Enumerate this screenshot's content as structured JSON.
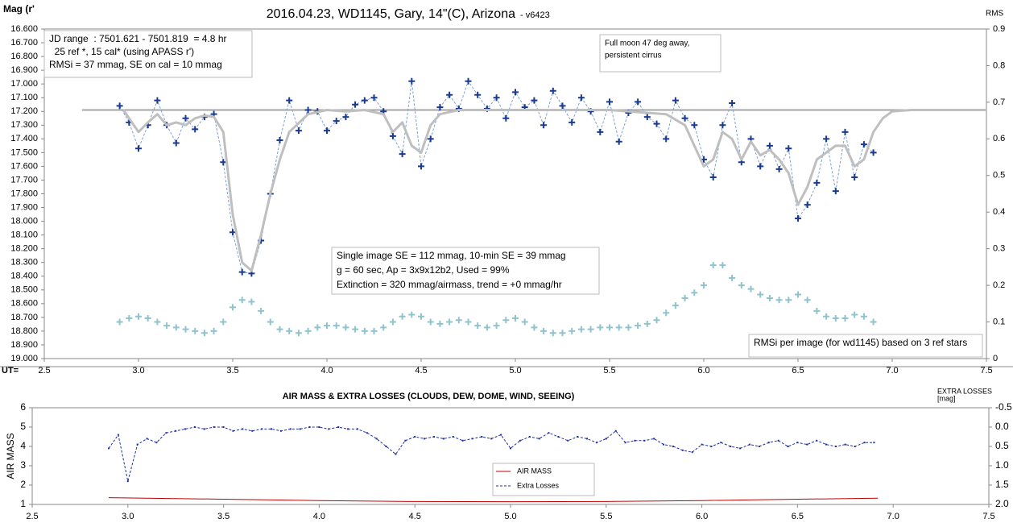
{
  "chart_data": [
    {
      "type": "line",
      "title": "2016.04.23,  WD1145, Gary, 14\"(C), Arizona",
      "subtitle": "- v6423",
      "ylabel": "Mag (r'",
      "y2label": "RMS",
      "xlabel": "UT=",
      "xlim": [
        2.5,
        7.5
      ],
      "xticks": [
        2.5,
        {
          "value": 3,
          "label": "3.0"
        },
        3.5,
        {
          "value": 4,
          "label": "4.0"
        },
        4.5,
        {
          "value": 5,
          "label": "5.0"
        },
        5.5,
        {
          "value": 6,
          "label": "6.0"
        },
        6.5,
        {
          "value": 7,
          "label": "7.0"
        },
        7.5
      ],
      "ylim": [
        19.0,
        16.6
      ],
      "yticks": [
        {
          "value": 16.6,
          "label": "16.600"
        },
        {
          "value": 16.7,
          "label": "16.700"
        },
        {
          "value": 16.8,
          "label": "16.800"
        },
        {
          "value": 16.9,
          "label": "16.900"
        },
        {
          "value": 17.0,
          "label": "17.000"
        },
        {
          "value": 17.1,
          "label": "17.100"
        },
        {
          "value": 17.2,
          "label": "17.200"
        },
        {
          "value": 17.3,
          "label": "17.300"
        },
        {
          "value": 17.4,
          "label": "17.400"
        },
        {
          "value": 17.5,
          "label": "17.500"
        },
        {
          "value": 17.6,
          "label": "17.600"
        },
        {
          "value": 17.7,
          "label": "17.700"
        },
        {
          "value": 17.8,
          "label": "17.800"
        },
        {
          "value": 17.9,
          "label": "17.900"
        },
        {
          "value": 18.0,
          "label": "18.000"
        },
        {
          "value": 18.1,
          "label": "18.100"
        },
        {
          "value": 18.2,
          "label": "18.200"
        },
        {
          "value": 18.3,
          "label": "18.300"
        },
        {
          "value": 18.4,
          "label": "18.400"
        },
        {
          "value": 18.5,
          "label": "18.500"
        },
        {
          "value": 18.6,
          "label": "18.600"
        },
        {
          "value": 18.7,
          "label": "18.700"
        },
        {
          "value": 18.8,
          "label": "18.800"
        },
        {
          "value": 18.9,
          "label": "18.900"
        },
        {
          "value": 19.0,
          "label": "19.000"
        }
      ],
      "y2lim": [
        0,
        0.9
      ],
      "y2ticks": [
        0,
        0.1,
        0.2,
        0.3,
        0.4,
        0.5,
        0.6,
        0.7,
        0.8,
        0.9
      ],
      "series": [
        {
          "color": "#a6a6a6",
          "line": "solid",
          "width": 2,
          "marker": "none",
          "x": [
            2.7,
            7.5
          ],
          "values": [
            17.19,
            17.19
          ]
        },
        {
          "color": "#1a3a8f",
          "line": "dashed",
          "width": 1,
          "marker": "plus",
          "linecolor": "#7d9fd8",
          "x": [
            2.9,
            2.95,
            3.0,
            3.05,
            3.1,
            3.15,
            3.2,
            3.25,
            3.3,
            3.35,
            3.4,
            3.45,
            3.5,
            3.55,
            3.6,
            3.65,
            3.7,
            3.75,
            3.8,
            3.85,
            3.9,
            3.95,
            4.0,
            4.05,
            4.1,
            4.15,
            4.2,
            4.25,
            4.3,
            4.35,
            4.4,
            4.45,
            4.5,
            4.55,
            4.6,
            4.65,
            4.7,
            4.75,
            4.8,
            4.85,
            4.9,
            4.95,
            5.0,
            5.05,
            5.1,
            5.15,
            5.2,
            5.25,
            5.3,
            5.35,
            5.4,
            5.45,
            5.5,
            5.55,
            5.6,
            5.65,
            5.7,
            5.75,
            5.8,
            5.85,
            5.9,
            5.95,
            6.0,
            6.05,
            6.1,
            6.15,
            6.2,
            6.25,
            6.3,
            6.35,
            6.4,
            6.45,
            6.5,
            6.55,
            6.6,
            6.65,
            6.7,
            6.75,
            6.8,
            6.85,
            6.9
          ],
          "values": [
            17.16,
            17.28,
            17.47,
            17.3,
            17.12,
            17.3,
            17.43,
            17.25,
            17.33,
            17.24,
            17.22,
            17.57,
            18.08,
            18.37,
            18.38,
            18.14,
            17.8,
            17.41,
            17.12,
            17.34,
            17.19,
            17.2,
            17.34,
            17.27,
            17.24,
            17.15,
            17.12,
            17.1,
            17.2,
            17.38,
            17.51,
            16.98,
            17.6,
            17.4,
            17.17,
            17.08,
            17.18,
            16.98,
            17.08,
            17.18,
            17.1,
            17.25,
            17.06,
            17.17,
            17.12,
            17.3,
            17.05,
            17.16,
            17.28,
            17.1,
            17.2,
            17.35,
            17.13,
            17.42,
            17.21,
            17.13,
            17.24,
            17.29,
            17.4,
            17.12,
            17.25,
            17.3,
            17.55,
            17.68,
            17.3,
            17.14,
            17.57,
            17.4,
            17.6,
            17.45,
            17.62,
            17.47,
            17.98,
            17.88,
            17.72,
            17.4,
            17.78,
            17.35,
            17.68,
            17.44,
            17.5
          ]
        },
        {
          "color": "#bfbfbf",
          "line": "solid",
          "width": 3,
          "marker": "none",
          "x": [
            2.92,
            3.0,
            3.05,
            3.1,
            3.15,
            3.2,
            3.25,
            3.3,
            3.35,
            3.4,
            3.45,
            3.5,
            3.55,
            3.6,
            3.65,
            3.7,
            3.75,
            3.8,
            3.9,
            4.0,
            4.1,
            4.2,
            4.3,
            4.35,
            4.4,
            4.45,
            4.5,
            4.55,
            4.6,
            4.7,
            4.8,
            5.0,
            5.5,
            5.8,
            5.9,
            5.95,
            6.0,
            6.05,
            6.1,
            6.15,
            6.2,
            6.25,
            6.3,
            6.35,
            6.4,
            6.45,
            6.5,
            6.55,
            6.6,
            6.65,
            6.7,
            6.75,
            6.8,
            6.85,
            6.9,
            6.95,
            7.0,
            7.1,
            7.5
          ],
          "values": [
            17.19,
            17.35,
            17.28,
            17.22,
            17.3,
            17.28,
            17.3,
            17.25,
            17.23,
            17.24,
            17.35,
            17.95,
            18.3,
            18.36,
            18.1,
            17.8,
            17.55,
            17.35,
            17.22,
            17.19,
            17.2,
            17.19,
            17.22,
            17.35,
            17.28,
            17.45,
            17.5,
            17.3,
            17.22,
            17.19,
            17.19,
            17.19,
            17.19,
            17.22,
            17.3,
            17.45,
            17.6,
            17.55,
            17.35,
            17.4,
            17.55,
            17.42,
            17.52,
            17.48,
            17.55,
            17.65,
            17.88,
            17.75,
            17.55,
            17.5,
            17.45,
            17.45,
            17.6,
            17.55,
            17.35,
            17.25,
            17.2,
            17.19,
            17.19
          ]
        },
        {
          "color": "#8fc4cc",
          "line": "none",
          "width": 1,
          "marker": "plus",
          "axis": "y2",
          "x": [
            2.9,
            2.95,
            3.0,
            3.05,
            3.1,
            3.15,
            3.2,
            3.25,
            3.3,
            3.35,
            3.4,
            3.45,
            3.5,
            3.55,
            3.6,
            3.65,
            3.7,
            3.75,
            3.8,
            3.85,
            3.9,
            3.95,
            4.0,
            4.05,
            4.1,
            4.15,
            4.2,
            4.25,
            4.3,
            4.35,
            4.4,
            4.45,
            4.5,
            4.55,
            4.6,
            4.65,
            4.7,
            4.75,
            4.8,
            4.85,
            4.9,
            4.95,
            5.0,
            5.05,
            5.1,
            5.15,
            5.2,
            5.25,
            5.3,
            5.35,
            5.4,
            5.45,
            5.5,
            5.55,
            5.6,
            5.65,
            5.7,
            5.75,
            5.8,
            5.85,
            5.9,
            5.95,
            6.0,
            6.05,
            6.1,
            6.15,
            6.2,
            6.25,
            6.3,
            6.35,
            6.4,
            6.45,
            6.5,
            6.55,
            6.6,
            6.65,
            6.7,
            6.75,
            6.8,
            6.85,
            6.9
          ],
          "values": [
            0.1,
            0.11,
            0.115,
            0.11,
            0.1,
            0.09,
            0.085,
            0.08,
            0.075,
            0.07,
            0.075,
            0.1,
            0.14,
            0.16,
            0.155,
            0.13,
            0.1,
            0.08,
            0.075,
            0.07,
            0.075,
            0.085,
            0.09,
            0.09,
            0.085,
            0.08,
            0.075,
            0.075,
            0.085,
            0.1,
            0.115,
            0.12,
            0.115,
            0.1,
            0.095,
            0.1,
            0.105,
            0.1,
            0.09,
            0.085,
            0.09,
            0.105,
            0.11,
            0.1,
            0.085,
            0.075,
            0.07,
            0.07,
            0.075,
            0.08,
            0.08,
            0.085,
            0.085,
            0.085,
            0.085,
            0.09,
            0.095,
            0.105,
            0.125,
            0.145,
            0.165,
            0.18,
            0.2,
            0.255,
            0.255,
            0.22,
            0.2,
            0.19,
            0.175,
            0.165,
            0.16,
            0.16,
            0.175,
            0.16,
            0.13,
            0.115,
            0.11,
            0.11,
            0.12,
            0.115,
            0.1
          ]
        }
      ],
      "annotations": [
        {
          "lines": [
            "JD range  : 7501.621 - 7501.819  = 4.8 hr",
            "  25 ref *, 15 cal* (using APASS r')",
            "RMSi = 37 mmag, SE on cal = 10 mmag"
          ]
        },
        {
          "lines": [
            "Full moon 47 deg away,",
            "persistent cirrus"
          ]
        },
        {
          "lines": [
            "Single image SE = 112 mmag, 10-min SE = 39 mmag",
            "g = 60 sec, Ap = 3x9x12b2, Used = 99%",
            "Extinction = 320 mmag/airmass, trend = +0 mmag/hr"
          ]
        },
        {
          "lines": [
            "RMSi per image (for wd1145) based on 3 ref stars"
          ]
        }
      ]
    },
    {
      "type": "line",
      "title": "AIR MASS & EXTRA LOSSES (CLOUDS, DEW, DOME, WIND, SEEING)",
      "ylabel": "AIR MASS",
      "y2label": [
        "EXTRA LOSSES",
        "[mag]"
      ],
      "xlim": [
        2.5,
        7.5
      ],
      "xticks": [
        2.5,
        {
          "value": 3,
          "label": "3.0"
        },
        3.5,
        {
          "value": 4,
          "label": "4.0"
        },
        4.5,
        {
          "value": 5,
          "label": "5.0"
        },
        5.5,
        {
          "value": 6,
          "label": "6.0"
        },
        6.5,
        {
          "value": 7,
          "label": "7.0"
        },
        7.5
      ],
      "ylim": [
        1,
        6
      ],
      "yticks": [
        1,
        2,
        3,
        4,
        5,
        6
      ],
      "y2lim": [
        2.0,
        -0.5
      ],
      "y2ticks": [
        {
          "value": 2,
          "label": "2.0"
        },
        1.5,
        {
          "value": 1,
          "label": "1.0"
        },
        0.5,
        {
          "value": 0,
          "label": "0.0"
        },
        -0.5
      ],
      "series": [
        {
          "name": "AIR MASS",
          "color": "#c00000",
          "line": "solid",
          "width": 1,
          "marker": "none",
          "x": [
            2.9,
            3.5,
            4.0,
            4.5,
            5.0,
            5.5,
            6.0,
            6.5,
            6.92
          ],
          "values": [
            1.35,
            1.27,
            1.2,
            1.15,
            1.14,
            1.15,
            1.2,
            1.27,
            1.32
          ]
        },
        {
          "name": "Extra Losses",
          "color": "#1f2f9f",
          "line": "dashed",
          "width": 1,
          "marker": "dot",
          "axis": "y2",
          "x": [
            2.9,
            2.95,
            3.0,
            3.05,
            3.1,
            3.15,
            3.2,
            3.25,
            3.3,
            3.35,
            3.4,
            3.45,
            3.5,
            3.55,
            3.6,
            3.65,
            3.7,
            3.75,
            3.8,
            3.85,
            3.9,
            3.95,
            4.0,
            4.05,
            4.1,
            4.15,
            4.2,
            4.25,
            4.3,
            4.35,
            4.4,
            4.45,
            4.5,
            4.55,
            4.6,
            4.65,
            4.7,
            4.75,
            4.8,
            4.85,
            4.9,
            4.95,
            5.0,
            5.05,
            5.1,
            5.15,
            5.2,
            5.25,
            5.3,
            5.35,
            5.4,
            5.45,
            5.5,
            5.55,
            5.6,
            5.65,
            5.7,
            5.75,
            5.8,
            5.85,
            5.9,
            5.95,
            6.0,
            6.05,
            6.1,
            6.15,
            6.2,
            6.25,
            6.3,
            6.35,
            6.4,
            6.45,
            6.5,
            6.55,
            6.6,
            6.65,
            6.7,
            6.75,
            6.8,
            6.85,
            6.9
          ],
          "values": [
            0.55,
            0.2,
            1.4,
            0.45,
            0.3,
            0.4,
            0.15,
            0.1,
            0.05,
            0.0,
            0.05,
            0.0,
            0.0,
            0.1,
            0.05,
            0.1,
            0.05,
            0.05,
            0.1,
            0.05,
            0.05,
            0.0,
            0.0,
            0.05,
            0.0,
            0.05,
            0.05,
            0.15,
            0.3,
            0.5,
            0.7,
            0.35,
            0.25,
            0.3,
            0.25,
            0.3,
            0.25,
            0.35,
            0.3,
            0.25,
            0.3,
            0.2,
            0.55,
            0.35,
            0.25,
            0.3,
            0.15,
            0.25,
            0.35,
            0.25,
            0.3,
            0.4,
            0.3,
            0.1,
            0.4,
            0.35,
            0.35,
            0.3,
            0.45,
            0.5,
            0.6,
            0.65,
            0.45,
            0.5,
            0.4,
            0.5,
            0.55,
            0.45,
            0.5,
            0.4,
            0.35,
            0.5,
            0.4,
            0.45,
            0.35,
            0.45,
            0.5,
            0.45,
            0.5,
            0.4,
            0.4
          ]
        }
      ]
    }
  ]
}
